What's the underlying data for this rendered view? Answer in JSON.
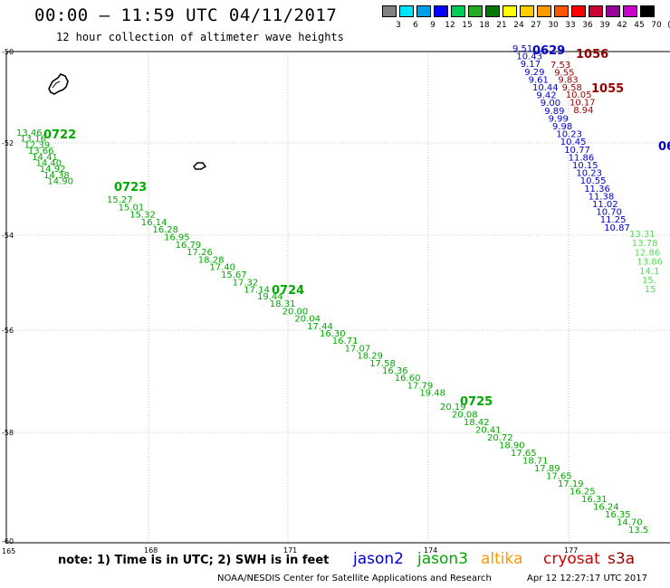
{
  "header": {
    "title": "00:00 – 11:59 UTC 04/11/2017",
    "subtitle": "12 hour collection of altimeter wave heights"
  },
  "colorbar": {
    "labels": [
      "3",
      "6",
      "9",
      "12",
      "15",
      "18",
      "21",
      "24",
      "27",
      "30",
      "33",
      "36",
      "39",
      "42",
      "45",
      "70",
      "(ft)"
    ],
    "colors": [
      "#808080",
      "#00e5ff",
      "#00a0e8",
      "#0000ff",
      "#00cc55",
      "#22aa22",
      "#007700",
      "#ffff00",
      "#ffcc00",
      "#ff9900",
      "#ff5500",
      "#ff0000",
      "#cc0033",
      "#990099",
      "#cc00cc",
      "#000000"
    ]
  },
  "map": {
    "lon_ticks": [
      "165",
      "168",
      "171",
      "174",
      "177"
    ],
    "lat_ticks": [
      "-50",
      "-52",
      "-54",
      "-56",
      "-58",
      "-60"
    ]
  },
  "tracks": [
    {
      "label": "0722",
      "color": "#00aa00",
      "values": [
        "13.46",
        "13.16",
        "12.39",
        "13.66",
        "14.41",
        "14.40",
        "14.92",
        "14.38",
        "14.90"
      ]
    },
    {
      "label": "0723",
      "color": "#00aa00",
      "values": [
        "15.27",
        "15.01",
        "15.32",
        "16.14",
        "16.28",
        "16.95",
        "16.79",
        "17.26",
        "18.28",
        "17.40",
        "15.67",
        "17.32",
        "17.14"
      ]
    },
    {
      "label": "0724",
      "color": "#00aa00",
      "values": [
        "19.44",
        "18.31",
        "20.00",
        "20.04",
        "17.44",
        "16.30",
        "16.71",
        "17.07",
        "18.29",
        "17.58",
        "16.36",
        "16.60",
        "17.79",
        "19.48"
      ]
    },
    {
      "label": "0725",
      "color": "#00aa00",
      "values": [
        "20.19",
        "20.08",
        "18.42",
        "20.41",
        "20.72",
        "18.90",
        "17.65",
        "18.71",
        "17.89",
        "17.65",
        "17.19",
        "16.25",
        "16.31",
        "16.24",
        "16.35",
        "14.70",
        "13.5"
      ]
    },
    {
      "label": "0629",
      "color": "#0000cc",
      "values": [
        "9.51",
        "10.43",
        "9.17",
        "9.29",
        "9.61",
        "10.44",
        "9.42",
        "9.00",
        "9.89",
        "9.99",
        "9.98",
        "10.23",
        "10.45",
        "10.77",
        "11.86",
        "10.15",
        "10.23",
        "10.55",
        "11.36",
        "11.38",
        "11.02",
        "10.70",
        "11.25",
        "10.87"
      ]
    },
    {
      "label": "1056",
      "color": "#990000",
      "values": [
        "7.53",
        "9.55",
        "9.83",
        "9.58",
        "10.05",
        "10.17",
        "8.94"
      ]
    },
    {
      "label": "1055",
      "color": "#990000",
      "values": []
    },
    {
      "label": "06",
      "color": "#0000cc",
      "values": []
    },
    {
      "label": "",
      "color": "#55dd55",
      "values": [
        "13.31",
        "13.78",
        "12.86",
        "13.86",
        "14.1",
        "15.",
        "15"
      ]
    }
  ],
  "footer": {
    "note": "note: 1) Time is in UTC; 2) SWH is in feet",
    "missions": [
      {
        "name": "jason2",
        "color": "#0000cc"
      },
      {
        "name": "jason3",
        "color": "#00aa00"
      },
      {
        "name": "altika",
        "color": "#ff9900"
      },
      {
        "name": "cryosat",
        "color": "#cc0000"
      },
      {
        "name": "s3a",
        "color": "#990000"
      }
    ],
    "credit": "NOAA/NESDIS Center for Satellite Applications and Research",
    "timestamp": "Apr 12 12:27:17 UTC 2017"
  }
}
